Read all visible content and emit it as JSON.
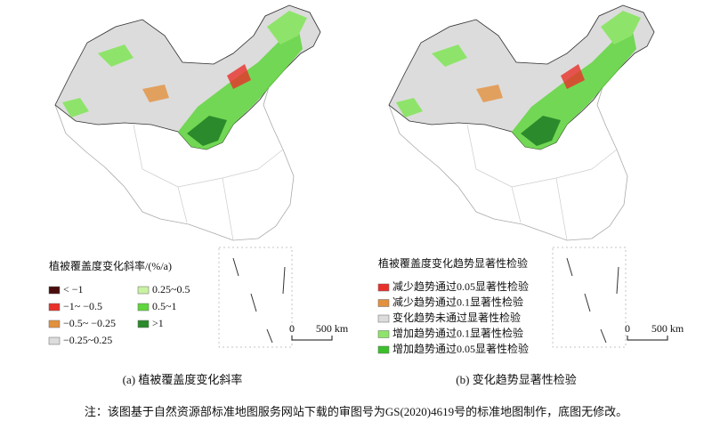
{
  "panels": [
    {
      "legend_title": "植被覆盖度变化斜率/(%/a)",
      "legend": [
        {
          "label": "< −1",
          "color": "#4a0c0c"
        },
        {
          "label": "−1~ −0.5",
          "color": "#e8312b"
        },
        {
          "label": "−0.5~ −0.25",
          "color": "#e3913e"
        },
        {
          "label": "−0.25~0.25",
          "color": "#dcdcdc"
        },
        {
          "label": "0.25~0.5",
          "color": "#c9f2a3"
        },
        {
          "label": "0.5~1",
          "color": "#5fd63c"
        },
        {
          "label": ">1",
          "color": "#2b8a2b"
        }
      ],
      "scale_zero": "0",
      "scale_label": "500 km",
      "caption": "(a) 植被覆盖度变化斜率"
    },
    {
      "legend_title": "植被覆盖度变化趋势显著性检验",
      "legend": [
        {
          "label": "减少趋势通过0.05显著性检验",
          "color": "#e8312b"
        },
        {
          "label": "减少趋势通过0.1显著性检验",
          "color": "#e3913e"
        },
        {
          "label": "变化趋势未通过显著性检验",
          "color": "#dcdcdc"
        },
        {
          "label": "增加趋势通过0.1显著性检验",
          "color": "#8ee46a"
        },
        {
          "label": "增加趋势通过0.05显著性检验",
          "color": "#3cbf2a"
        }
      ],
      "scale_zero": "0",
      "scale_label": "500 km",
      "caption": "(b) 变化趋势显著性检验"
    }
  ],
  "note": "注：该图基于自然资源部标准地图服务网站下载的审图号为GS(2020)4619号的标准地图制作，底图无修改。"
}
